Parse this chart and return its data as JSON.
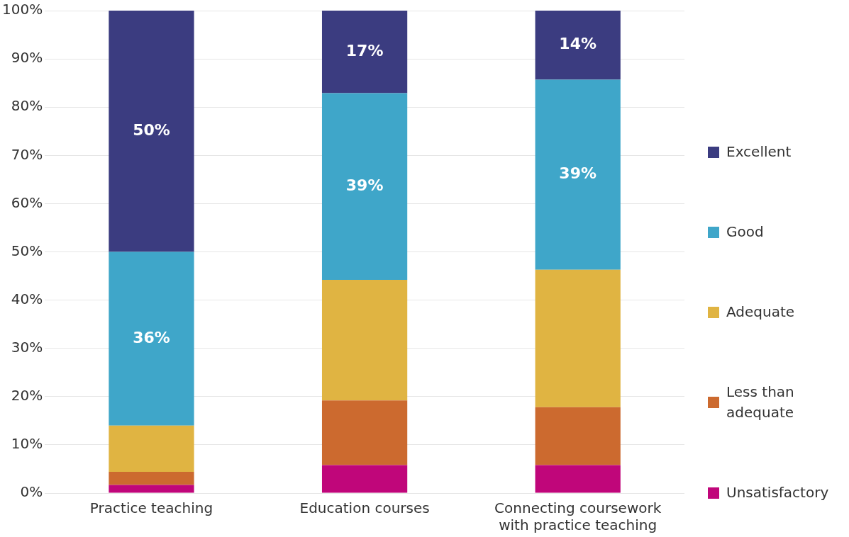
{
  "chart_data": {
    "type": "bar",
    "stacked": true,
    "categories": [
      "Practice teaching",
      "Education courses",
      "Connecting coursework with practice teaching"
    ],
    "series": [
      {
        "name": "Unsatisfactory",
        "color": "#c0067a",
        "values": [
          1.7,
          5.8,
          5.8
        ],
        "value_labels": [
          null,
          null,
          null
        ]
      },
      {
        "name": "Less than adequate",
        "color": "#cc6a2f",
        "values": [
          2.7,
          13.4,
          12
        ],
        "value_labels": [
          null,
          null,
          null
        ]
      },
      {
        "name": "Adequate",
        "color": "#e0b442",
        "values": [
          9.6,
          25,
          28.5
        ],
        "value_labels": [
          null,
          null,
          null
        ]
      },
      {
        "name": "Good",
        "color": "#3fa6c9",
        "values": [
          36,
          38.7,
          39.4
        ],
        "value_labels": [
          "36%",
          "39%",
          "39%"
        ]
      },
      {
        "name": "Excellent",
        "color": "#3b3c80",
        "values": [
          50,
          17.1,
          14.3
        ],
        "value_labels": [
          "50%",
          "17%",
          "14%"
        ]
      }
    ],
    "ylim": [
      0,
      100
    ],
    "yticks": [
      {
        "value": 0,
        "label": "0%"
      },
      {
        "value": 10,
        "label": "10%"
      },
      {
        "value": 20,
        "label": "20%"
      },
      {
        "value": 30,
        "label": "30%"
      },
      {
        "value": 40,
        "label": "40%"
      },
      {
        "value": 50,
        "label": "50%"
      },
      {
        "value": 60,
        "label": "60%"
      },
      {
        "value": 70,
        "label": "70%"
      },
      {
        "value": 80,
        "label": "80%"
      },
      {
        "value": 90,
        "label": "90%"
      },
      {
        "value": 100,
        "label": "100%"
      }
    ],
    "grid": "y",
    "legend": "right"
  }
}
